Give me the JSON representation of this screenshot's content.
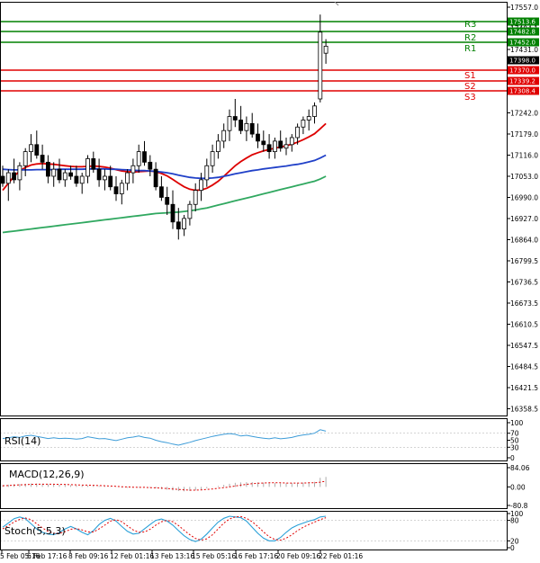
{
  "chart_data": {
    "type": "candlestick",
    "instrument_view": "price with moving averages and support/resistance levels",
    "price_axis": {
      "ylim": [
        17526.3,
        16349.4
      ],
      "ticks": [
        "17557.0",
        "17494.1",
        "17431.0",
        "17368.0",
        "17305.0",
        "17242.0",
        "17179.0",
        "17116.0",
        "17053.0",
        "16990.0",
        "16927.0",
        "16864.0",
        "16799.5",
        "16736.5",
        "16673.5",
        "16610.5",
        "16547.5",
        "16484.5",
        "16421.5",
        "16358.5"
      ]
    },
    "time_axis": {
      "ticks": [
        "5 Feb 05:16",
        "6 Feb 17:16",
        "8 Feb 09:16",
        "12 Feb 01:16",
        "13 Feb 13:16",
        "15 Feb 05:16",
        "16 Feb 17:16",
        "20 Feb 09:16",
        "22 Feb 01:16"
      ]
    },
    "levels": [
      {
        "name": "R3",
        "price": 17513.6,
        "label": "17513.6",
        "color": "#008000"
      },
      {
        "name": "R2",
        "price": 17482.8,
        "label": "17482.8",
        "color": "#008000"
      },
      {
        "name": "R1",
        "price": 17452.0,
        "label": "17452.0",
        "color": "#008000"
      },
      {
        "name": "S1",
        "price": 17370.0,
        "label": "17370.0",
        "color": "#e00000"
      },
      {
        "name": "S2",
        "price": 17339.2,
        "label": "17339.2",
        "color": "#e00000"
      },
      {
        "name": "S3",
        "price": 17308.4,
        "label": "17308.4",
        "color": "#e00000"
      }
    ],
    "current_price": {
      "value": 17398.0,
      "label": "17398.0"
    },
    "candles": [
      [
        17030,
        17060,
        17000,
        17010
      ],
      [
        17010,
        17050,
        16960,
        17040
      ],
      [
        17040,
        17080,
        17010,
        17020
      ],
      [
        17020,
        17070,
        16990,
        17060
      ],
      [
        17060,
        17110,
        17030,
        17100
      ],
      [
        17100,
        17150,
        17070,
        17120
      ],
      [
        17120,
        17160,
        17080,
        17090
      ],
      [
        17090,
        17120,
        17050,
        17070
      ],
      [
        17070,
        17090,
        17010,
        17030
      ],
      [
        17030,
        17070,
        17000,
        17050
      ],
      [
        17050,
        17080,
        17010,
        17020
      ],
      [
        17020,
        17050,
        17000,
        17040
      ],
      [
        17040,
        17060,
        17020,
        17030
      ],
      [
        17030,
        17060,
        17000,
        17010
      ],
      [
        17010,
        17040,
        16980,
        17030
      ],
      [
        17030,
        17090,
        17010,
        17080
      ],
      [
        17080,
        17100,
        17040,
        17050
      ],
      [
        17050,
        17080,
        17000,
        17020
      ],
      [
        17020,
        17050,
        16990,
        17030
      ],
      [
        17030,
        17060,
        16990,
        17000
      ],
      [
        17000,
        17030,
        16960,
        16980
      ],
      [
        16980,
        17020,
        16950,
        17010
      ],
      [
        17010,
        17050,
        16990,
        17040
      ],
      [
        17040,
        17080,
        17010,
        17060
      ],
      [
        17060,
        17120,
        17040,
        17100
      ],
      [
        17100,
        17130,
        17060,
        17070
      ],
      [
        17070,
        17090,
        17030,
        17050
      ],
      [
        17050,
        17070,
        16990,
        17000
      ],
      [
        17000,
        17030,
        16960,
        16970
      ],
      [
        16970,
        17000,
        16920,
        16950
      ],
      [
        16950,
        16990,
        16880,
        16900
      ],
      [
        16900,
        16940,
        16850,
        16880
      ],
      [
        16880,
        16920,
        16860,
        16910
      ],
      [
        16910,
        16960,
        16890,
        16950
      ],
      [
        16950,
        17010,
        16930,
        16990
      ],
      [
        16990,
        17040,
        16960,
        17020
      ],
      [
        17020,
        17080,
        17000,
        17060
      ],
      [
        17060,
        17120,
        17040,
        17100
      ],
      [
        17100,
        17150,
        17080,
        17130
      ],
      [
        17130,
        17180,
        17110,
        17160
      ],
      [
        17160,
        17220,
        17130,
        17200
      ],
      [
        17200,
        17250,
        17170,
        17190
      ],
      [
        17190,
        17230,
        17150,
        17160
      ],
      [
        17160,
        17200,
        17130,
        17180
      ],
      [
        17180,
        17210,
        17140,
        17150
      ],
      [
        17150,
        17180,
        17110,
        17130
      ],
      [
        17130,
        17160,
        17100,
        17120
      ],
      [
        17120,
        17150,
        17080,
        17100
      ],
      [
        17100,
        17140,
        17080,
        17130
      ],
      [
        17130,
        17160,
        17100,
        17110
      ],
      [
        17110,
        17140,
        17090,
        17120
      ],
      [
        17120,
        17150,
        17100,
        17140
      ],
      [
        17140,
        17180,
        17120,
        17170
      ],
      [
        17170,
        17200,
        17150,
        17190
      ],
      [
        17190,
        17220,
        17160,
        17200
      ],
      [
        17200,
        17240,
        17180,
        17230
      ],
      [
        17250,
        17490,
        17240,
        17440
      ],
      [
        17380,
        17420,
        17350,
        17400
      ]
    ],
    "moving_averages": [
      {
        "name": "MA fast",
        "color": "#dd0000",
        "values": [
          16990,
          17010,
          17030,
          17045,
          17055,
          17062,
          17065,
          17066,
          17065,
          17064,
          17062,
          17060,
          17058,
          17057,
          17057,
          17058,
          17059,
          17058,
          17056,
          17053,
          17049,
          17045,
          17043,
          17042,
          17043,
          17044,
          17045,
          17043,
          17038,
          17031,
          17021,
          17010,
          17000,
          16993,
          16990,
          16991,
          16996,
          17005,
          17016,
          17030,
          17045,
          17060,
          17072,
          17082,
          17091,
          17097,
          17102,
          17106,
          17110,
          17113,
          17117,
          17121,
          17127,
          17134,
          17142,
          17151,
          17165,
          17180
        ]
      },
      {
        "name": "MA medium",
        "color": "#2040c8",
        "values": [
          17050,
          17049,
          17048,
          17048,
          17048,
          17048,
          17049,
          17049,
          17049,
          17049,
          17050,
          17050,
          17050,
          17050,
          17050,
          17051,
          17051,
          17051,
          17051,
          17050,
          17050,
          17049,
          17048,
          17047,
          17046,
          17046,
          17045,
          17044,
          17042,
          17040,
          17037,
          17033,
          17030,
          17027,
          17025,
          17024,
          17024,
          17025,
          17027,
          17030,
          17033,
          17037,
          17040,
          17043,
          17046,
          17048,
          17051,
          17053,
          17055,
          17057,
          17059,
          17062,
          17064,
          17067,
          17071,
          17075,
          17082,
          17090
        ]
      },
      {
        "name": "MA slow",
        "color": "#30a860",
        "values": [
          16870,
          16872,
          16874,
          16876,
          16878,
          16880,
          16882,
          16884,
          16886,
          16888,
          16890,
          16892,
          16894,
          16896,
          16898,
          16900,
          16902,
          16904,
          16906,
          16908,
          16910,
          16912,
          16914,
          16916,
          16918,
          16920,
          16922,
          16924,
          16925,
          16926,
          16927,
          16928,
          16930,
          16932,
          16934,
          16937,
          16940,
          16944,
          16948,
          16952,
          16956,
          16960,
          16964,
          16968,
          16972,
          16976,
          16980,
          16984,
          16988,
          16992,
          16996,
          17000,
          17004,
          17008,
          17012,
          17016,
          17022,
          17030
        ]
      }
    ],
    "indicators": [
      {
        "name": "RSI",
        "label": "RSI(14)",
        "ticks": [
          "100",
          "70",
          "50",
          "30",
          "0"
        ],
        "ylim": [
          0,
          100
        ],
        "values": [
          55,
          57,
          60,
          58,
          62,
          64,
          61,
          58,
          55,
          57,
          55,
          56,
          55,
          53,
          55,
          60,
          57,
          54,
          55,
          52,
          49,
          53,
          57,
          59,
          62,
          58,
          56,
          50,
          46,
          43,
          39,
          36,
          40,
          44,
          49,
          53,
          57,
          61,
          64,
          67,
          69,
          67,
          62,
          64,
          61,
          58,
          56,
          54,
          57,
          54,
          56,
          58,
          62,
          65,
          67,
          70,
          80,
          76
        ],
        "levels": [
          70,
          30
        ]
      },
      {
        "name": "MACD",
        "label": "MACD(12,26,9)",
        "ticks": [
          "84.06",
          "0.00",
          "-80.8"
        ],
        "ylim": [
          -80.8,
          84.06
        ],
        "histogram": [
          8,
          10,
          12,
          13,
          14,
          15,
          15,
          14,
          12,
          11,
          10,
          9,
          8,
          7,
          6,
          6,
          5,
          4,
          3,
          1,
          -1,
          -3,
          -4,
          -4,
          -3,
          -3,
          -4,
          -6,
          -9,
          -12,
          -15,
          -18,
          -19,
          -18,
          -15,
          -11,
          -6,
          -1,
          4,
          9,
          14,
          18,
          20,
          21,
          21,
          20,
          19,
          18,
          17,
          16,
          16,
          17,
          18,
          19,
          20,
          22,
          40,
          44
        ],
        "signal": [
          5,
          6,
          8,
          9,
          10,
          11,
          12,
          12,
          12,
          12,
          11,
          11,
          10,
          9,
          8,
          8,
          7,
          6,
          5,
          4,
          3,
          1,
          0,
          -1,
          -2,
          -2,
          -3,
          -4,
          -5,
          -7,
          -9,
          -11,
          -13,
          -14,
          -14,
          -13,
          -11,
          -9,
          -6,
          -3,
          0,
          4,
          8,
          11,
          14,
          16,
          17,
          18,
          18,
          18,
          17,
          17,
          17,
          17,
          18,
          18,
          21,
          25
        ]
      },
      {
        "name": "Stochastic",
        "label": "Stoch(5,5,3)",
        "ticks": [
          "100",
          "80",
          "20",
          "0"
        ],
        "ylim": [
          0,
          100
        ],
        "k": [
          60,
          72,
          85,
          90,
          85,
          70,
          55,
          45,
          40,
          38,
          45,
          55,
          62,
          55,
          45,
          38,
          50,
          68,
          80,
          86,
          78,
          62,
          48,
          40,
          42,
          55,
          68,
          80,
          84,
          78,
          66,
          50,
          35,
          24,
          18,
          25,
          40,
          58,
          75,
          86,
          92,
          90,
          88,
          78,
          60,
          42,
          28,
          20,
          20,
          30,
          45,
          58,
          66,
          72,
          78,
          82,
          90,
          92
        ],
        "d": [
          55,
          65,
          75,
          83,
          87,
          82,
          70,
          58,
          48,
          42,
          42,
          47,
          54,
          56,
          52,
          46,
          46,
          55,
          66,
          78,
          82,
          76,
          64,
          52,
          45,
          46,
          54,
          66,
          76,
          80,
          76,
          65,
          51,
          38,
          27,
          22,
          26,
          38,
          55,
          72,
          84,
          90,
          91,
          86,
          76,
          62,
          46,
          32,
          24,
          22,
          28,
          38,
          50,
          60,
          68,
          75,
          82,
          88
        ],
        "levels": [
          80,
          20
        ]
      }
    ]
  }
}
